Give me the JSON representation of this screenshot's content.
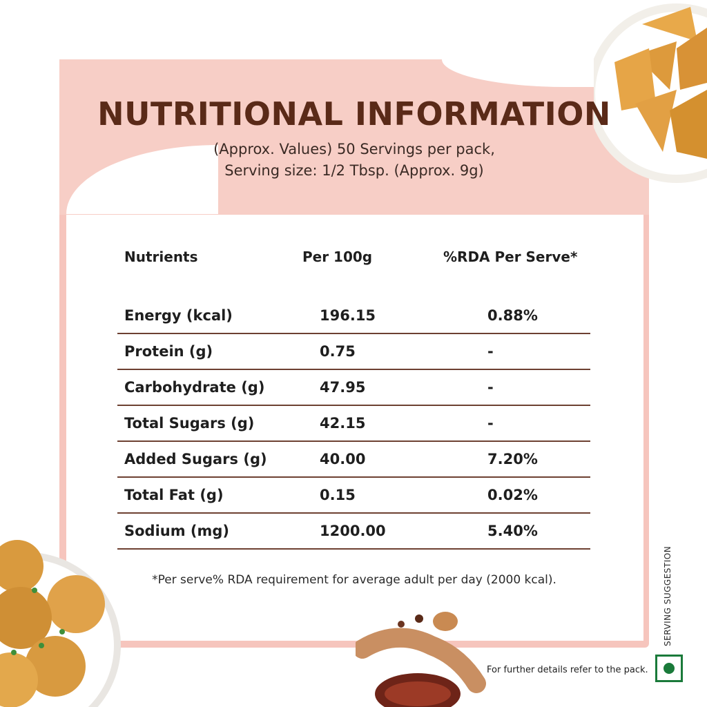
{
  "header": {
    "title": "NUTRITIONAL INFORMATION",
    "subtitle_line1": "(Approx. Values) 50 Servings per pack,",
    "subtitle_line2": "Serving size: 1/2 Tbsp. (Approx. 9g)"
  },
  "table": {
    "columns": [
      "Nutrients",
      "Per 100g",
      "%RDA Per Serve*"
    ],
    "rows": [
      {
        "nutrient": "Energy (kcal)",
        "per100": "196.15",
        "rda": "0.88%"
      },
      {
        "nutrient": "Protein (g)",
        "per100": "0.75",
        "rda": "-"
      },
      {
        "nutrient": "Carbohydrate (g)",
        "per100": "47.95",
        "rda": "-"
      },
      {
        "nutrient": "Total Sugars (g)",
        "per100": "42.15",
        "rda": "-"
      },
      {
        "nutrient": "Added Sugars (g)",
        "per100": "40.00",
        "rda": "7.20%"
      },
      {
        "nutrient": "Total Fat (g)",
        "per100": "0.15",
        "rda": "0.02%"
      },
      {
        "nutrient": "Sodium (mg)",
        "per100": "1200.00",
        "rda": "5.40%"
      }
    ]
  },
  "footnote": "*Per serve% RDA requirement for average adult per day (2000 kcal).",
  "pack_note": "For further details refer to the pack.",
  "serving_suggestion": "SERVING SUGGESTION",
  "icons": {
    "veg_mark": "veg-symbol-icon"
  },
  "colors": {
    "accent": "#f7cec6",
    "title": "#5a2a18",
    "rule": "#6d4031",
    "veg": "#1a7a3a"
  }
}
